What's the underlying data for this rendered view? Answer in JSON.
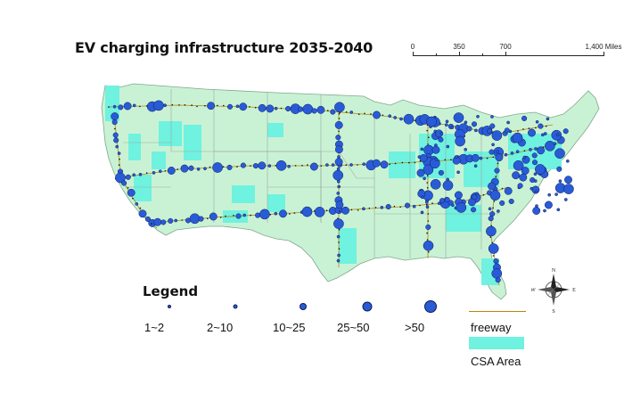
{
  "title": "EV charging infrastructure 2035-2040",
  "scale": {
    "labels": [
      "0",
      "350",
      "700",
      "1,400 Miles"
    ]
  },
  "legend": {
    "title": "Legend",
    "sizes": [
      {
        "label": "1~2"
      },
      {
        "label": "2~10"
      },
      {
        "label": "10~25"
      },
      {
        "label": "25~50"
      },
      {
        "label": ">50"
      }
    ],
    "freeway_label": "freeway",
    "csa_label": "CSA Area"
  },
  "compass": {
    "n": "N",
    "s": "S",
    "e": "E",
    "w": "W"
  },
  "colors": {
    "land": "#c9f2d4",
    "csa": "#6ff2e0",
    "station_fill": "#2a5bd7",
    "station_stroke": "#0b1e5a",
    "freeway": "#b8860b",
    "state_border": "#9aa89e"
  }
}
